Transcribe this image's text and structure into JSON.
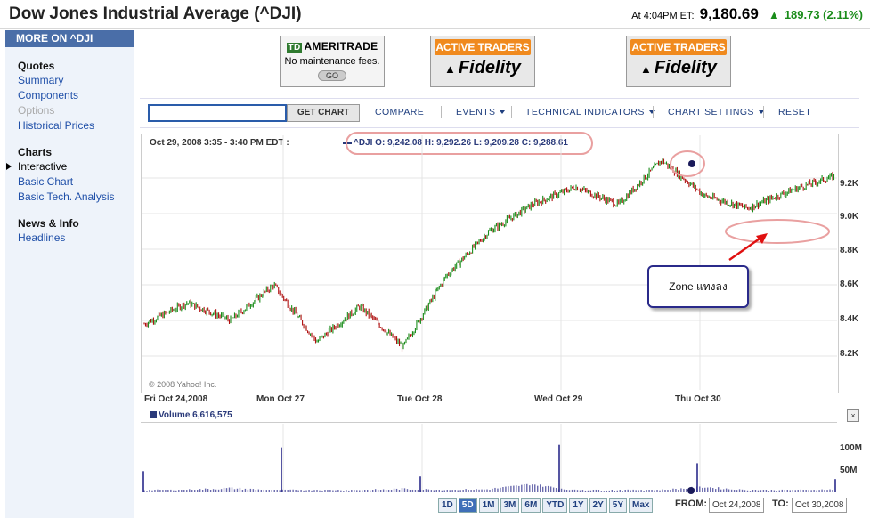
{
  "header": {
    "title": "Dow Jones Industrial Average (^DJI)",
    "time_label": "At 4:04PM ET:",
    "price": "9,180.69",
    "change": "189.73 (2.11%)"
  },
  "sidebar": {
    "head": "MORE ON ^DJI",
    "sections": [
      {
        "title": "Quotes",
        "links": [
          "Summary",
          "Components",
          "Options",
          "Historical Prices"
        ]
      },
      {
        "title": "Charts",
        "links": [
          "Interactive",
          "Basic Chart",
          "Basic Tech. Analysis"
        ]
      },
      {
        "title": "News & Info",
        "links": [
          "Headlines"
        ]
      }
    ]
  },
  "ads": {
    "ameritrade": {
      "brand": "AMERITRADE",
      "td": "TD",
      "slogan": "No maintenance fees.",
      "go": "GO"
    },
    "fidelity1": {
      "top": "ACTIVE TRADERS",
      "brand": "Fidelity"
    },
    "fidelity2": {
      "top": "ACTIVE TRADERS",
      "brand": "Fidelity"
    }
  },
  "toolbar": {
    "search_value": "",
    "get_chart": "GET CHART",
    "compare": "COMPARE",
    "events": "EVENTS",
    "technical": "TECHNICAL INDICATORS",
    "settings": "CHART SETTINGS",
    "reset": "RESET"
  },
  "chart": {
    "info": "Oct 29, 2008 3:35 - 3:40 PM EDT :",
    "ohlc": "^DJI  O: 9,242.08  H: 9,292.26  L: 9,209.28  C: 9,288.61",
    "copyright": "© 2008 Yahoo! Inc.",
    "y_ticks": [
      "9.2K",
      "9.0K",
      "8.8K",
      "8.6K",
      "8.4K",
      "8.2K"
    ],
    "x_ticks": [
      "Fri Oct 24,2008",
      "Mon Oct 27",
      "Tue Oct 28",
      "Wed Oct 29",
      "Thu Oct 30"
    ],
    "volume_label": "Volume  6,616,575",
    "volume_ticks": [
      "100M",
      "50M"
    ],
    "close_glyph": "×",
    "annotation": "Zone แทงลง",
    "colors": {
      "up": "#1a8c1a",
      "down": "#b01010",
      "volume": "#2a2a8a",
      "highlight": "#e9a0a0",
      "arrow": "#e01010"
    }
  },
  "chart_data": {
    "type": "line",
    "y_unit": "DJIA index points",
    "ylim": [
      8100,
      9350
    ],
    "x": [
      "Oct 24",
      "Oct 24",
      "Oct 27",
      "Oct 27",
      "Oct 27",
      "Oct 28",
      "Oct 28",
      "Oct 28",
      "Oct 28",
      "Oct 29",
      "Oct 29",
      "Oct 29",
      "Oct 29",
      "Oct 30",
      "Oct 30",
      "Oct 30",
      "Oct 30"
    ],
    "values": [
      8380,
      8500,
      8400,
      8600,
      8280,
      8480,
      8250,
      8650,
      8900,
      9050,
      9150,
      9050,
      9300,
      9100,
      9030,
      9130,
      9210
    ],
    "volume_values_millions": [
      8,
      15,
      40,
      10,
      12,
      8,
      30,
      12,
      25,
      90,
      10,
      8,
      12,
      55,
      10,
      8,
      20
    ]
  },
  "ranges": {
    "buttons": [
      "1D",
      "5D",
      "1M",
      "3M",
      "6M",
      "YTD",
      "1Y",
      "2Y",
      "5Y",
      "Max"
    ],
    "active": "5D",
    "from_label": "FROM:",
    "from_value": "Oct 24,2008",
    "to_label": "TO:",
    "to_value": "Oct 30,2008"
  }
}
